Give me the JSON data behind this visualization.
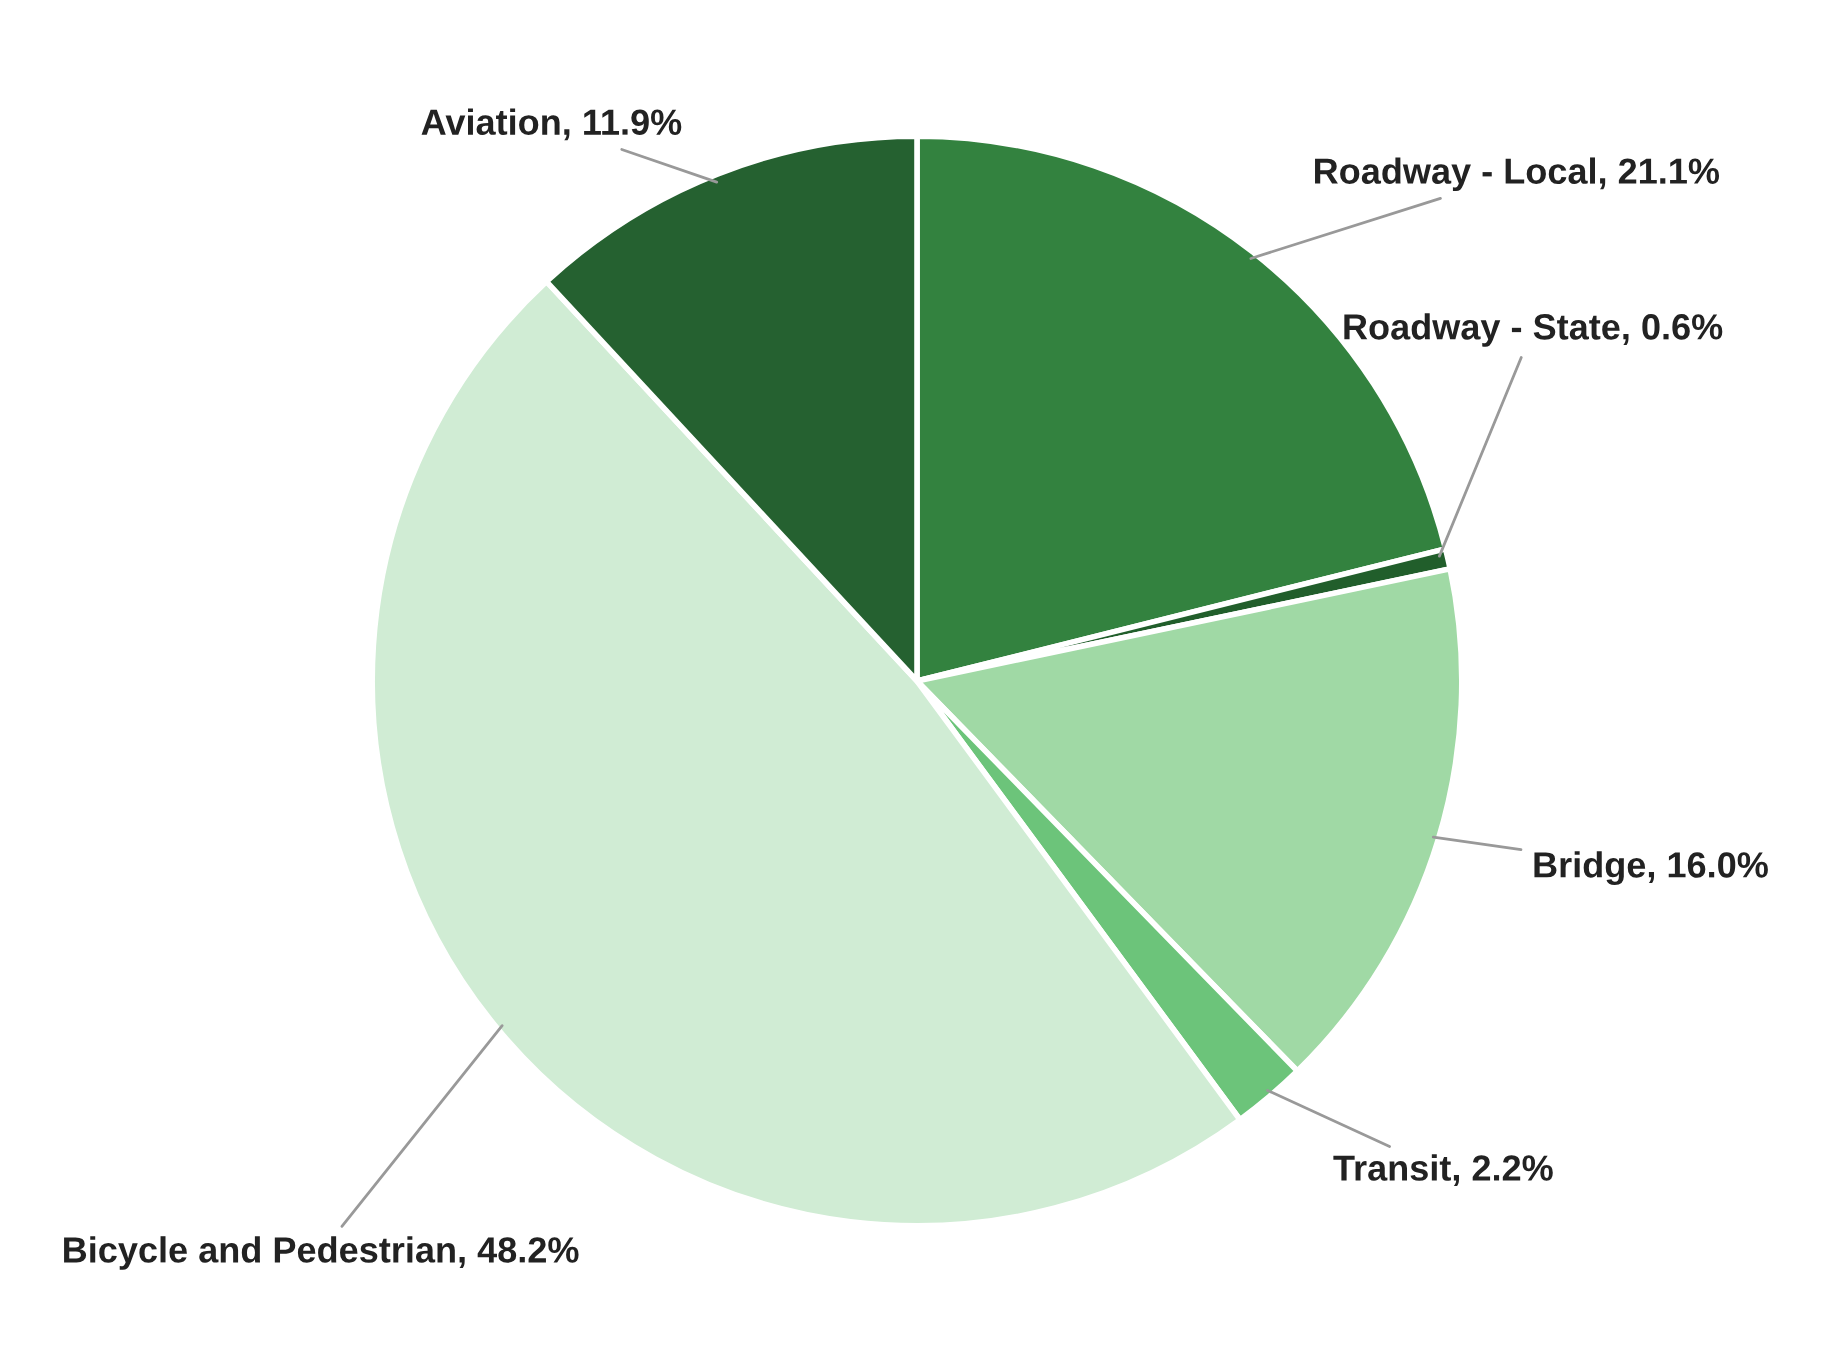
{
  "chart_data": {
    "type": "pie",
    "categories": [
      "Roadway - Local",
      "Roadway - State",
      "Bridge",
      "Transit",
      "Bicycle and Pedestrian",
      "Aviation"
    ],
    "values": [
      21.1,
      0.6,
      16.0,
      2.2,
      48.2,
      11.9
    ],
    "value_labels": [
      "21.1%",
      "0.6%",
      "16.0%",
      "2.2%",
      "48.2%",
      "11.9%"
    ],
    "colors": [
      "#33823f",
      "#215e2b",
      "#a0d9a5",
      "#6cc47a",
      "#d0ecd4",
      "#256130"
    ],
    "legend": false
  }
}
